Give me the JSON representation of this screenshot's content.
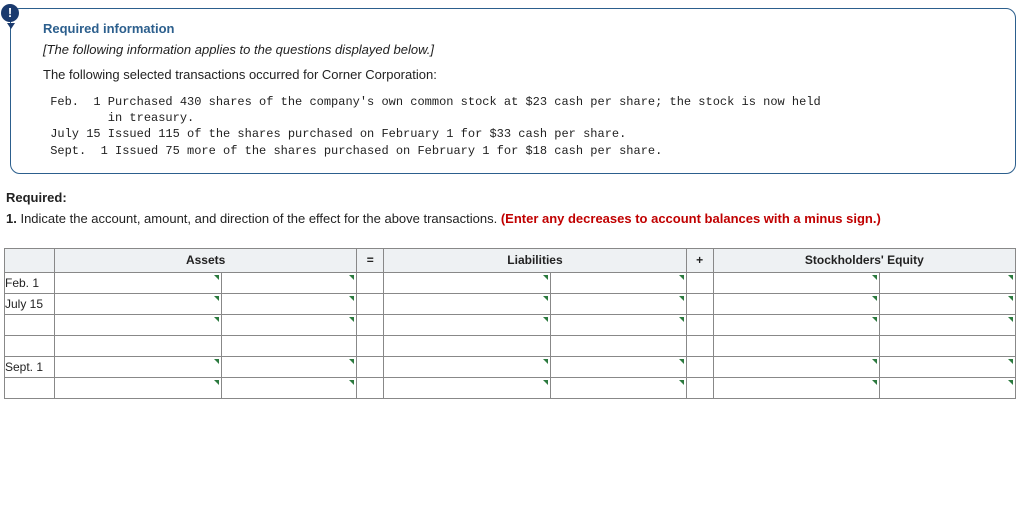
{
  "info": {
    "heading": "Required information",
    "note": "[The following information applies to the questions displayed below.]",
    "intro": "The following selected transactions occurred for Corner Corporation:",
    "transactions": " Feb.  1 Purchased 430 shares of the company's own common stock at $23 cash per share; the stock is now held\n         in treasury.\n July 15 Issued 115 of the shares purchased on February 1 for $33 cash per share.\n Sept.  1 Issued 75 more of the shares purchased on February 1 for $18 cash per share."
  },
  "required": {
    "label": "Required:",
    "num": "1.",
    "text": "Indicate the account, amount, and direction of the effect for the above transactions. ",
    "hint": "(Enter any decreases to account balances with a minus sign.)"
  },
  "table": {
    "headers": {
      "assets": "Assets",
      "eq": "=",
      "liab": "Liabilities",
      "plus": "+",
      "se": "Stockholders' Equity"
    },
    "dates": {
      "r1": "Feb. 1",
      "r2": "July 15",
      "r3": "",
      "r4": "Sept. 1",
      "r5": ""
    }
  },
  "colors": {
    "border": "#2c5f8d",
    "accent_red": "#c00000",
    "tick": "#2c7a3f",
    "icon_bg": "#1a3a6e"
  }
}
